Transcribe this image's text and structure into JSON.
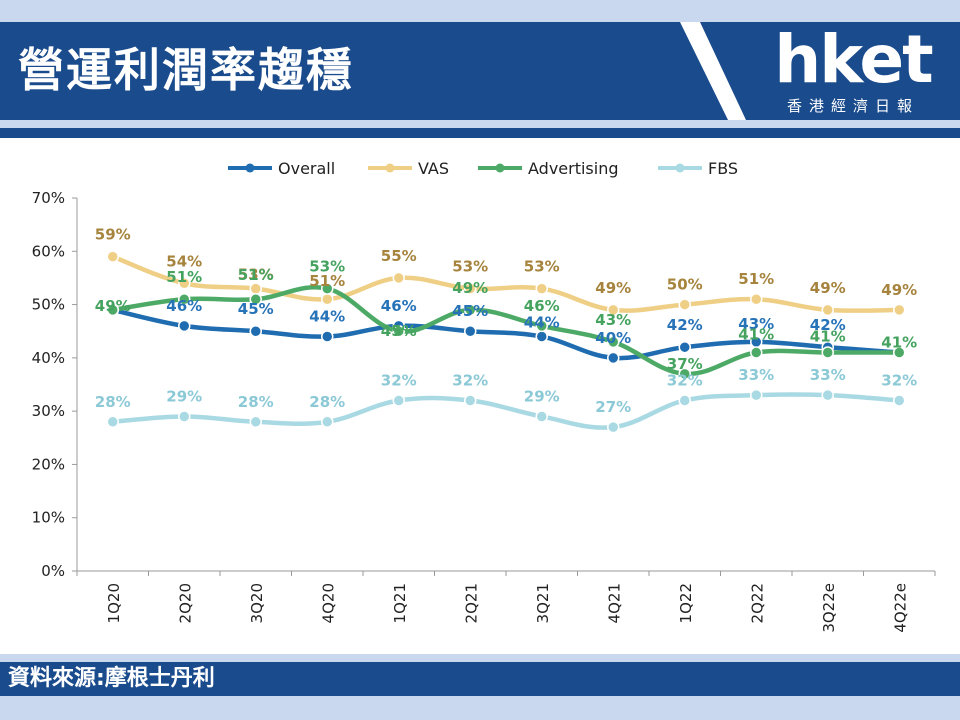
{
  "header": {
    "title": "營運利潤率趨穩",
    "logo_text": "hket",
    "logo_subtitle": "香港經濟日報"
  },
  "footer": {
    "source": "資料來源:摩根士丹利"
  },
  "colors": {
    "header_bg": "#1a4b8c",
    "strip": "#c9d8ee",
    "overall": "#1f6db0",
    "vas": "#efcf86",
    "advertising": "#4daa66",
    "fbs": "#a9d9e3",
    "overall_label": "#2773b8",
    "vas_label": "#a6843e",
    "advertising_label": "#45a35f",
    "fbs_label": "#8cc9d6"
  },
  "chart_data": {
    "type": "line",
    "categories": [
      "1Q20",
      "2Q20",
      "3Q20",
      "4Q20",
      "1Q21",
      "2Q21",
      "3Q21",
      "4Q21",
      "1Q22",
      "2Q22",
      "3Q22e",
      "4Q22e"
    ],
    "series": [
      {
        "name": "Overall",
        "key": "overall",
        "values": [
          49,
          46,
          45,
          44,
          46,
          45,
          44,
          40,
          42,
          43,
          42,
          41
        ],
        "labels": [
          "",
          "46%",
          "45%",
          "44%",
          "46%",
          "45%",
          "44%",
          "40%",
          "42%",
          "43%",
          "42%",
          ""
        ]
      },
      {
        "name": "VAS",
        "key": "vas",
        "values": [
          59,
          54,
          53,
          51,
          55,
          53,
          53,
          49,
          50,
          51,
          49,
          49
        ],
        "labels": [
          "59%",
          "54%",
          "53%",
          "51%",
          "55%",
          "53%",
          "53%",
          "49%",
          "50%",
          "51%",
          "49%",
          "49%"
        ]
      },
      {
        "name": "Advertising",
        "key": "advertising",
        "values": [
          49,
          51,
          51,
          53,
          45,
          49,
          46,
          43,
          37,
          41,
          41,
          41
        ],
        "labels": [
          "49%",
          "51%",
          "51%",
          "53%",
          "45%",
          "49%",
          "46%",
          "43%",
          "37%",
          "41%",
          "41%",
          "41%"
        ]
      },
      {
        "name": "FBS",
        "key": "fbs",
        "values": [
          28,
          29,
          28,
          28,
          32,
          32,
          29,
          27,
          32,
          33,
          33,
          32
        ],
        "labels": [
          "28%",
          "29%",
          "28%",
          "28%",
          "32%",
          "32%",
          "29%",
          "27%",
          "32%",
          "33%",
          "33%",
          "32%"
        ]
      }
    ],
    "yticks": [
      "0%",
      "10%",
      "20%",
      "30%",
      "40%",
      "50%",
      "60%",
      "70%"
    ],
    "ylim": [
      0,
      70
    ],
    "legend": "top",
    "grid": false
  }
}
